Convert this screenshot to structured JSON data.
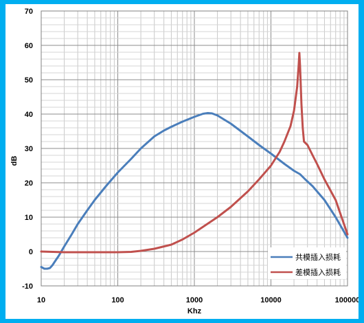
{
  "chart_data": {
    "type": "line",
    "title": "",
    "xlabel": "Khz",
    "ylabel": "dB",
    "xscale": "log",
    "xlim": [
      10,
      100000
    ],
    "ylim": [
      -10,
      70
    ],
    "x_ticks": [
      "10",
      "100",
      "1000",
      "10000",
      "100000"
    ],
    "y_ticks": [
      "-10",
      "0",
      "10",
      "20",
      "30",
      "40",
      "50",
      "60",
      "70"
    ],
    "grid": true,
    "legend_position": "bottom-right",
    "series": [
      {
        "name": "共模插入损耗",
        "color": "#4a7ebb",
        "points": [
          [
            10,
            -4.5
          ],
          [
            11,
            -5
          ],
          [
            12,
            -5
          ],
          [
            13,
            -4.8
          ],
          [
            14,
            -4
          ],
          [
            15,
            -3
          ],
          [
            17,
            -1.2
          ],
          [
            20,
            1.5
          ],
          [
            25,
            5
          ],
          [
            30,
            8
          ],
          [
            40,
            12
          ],
          [
            50,
            15
          ],
          [
            70,
            19
          ],
          [
            100,
            23
          ],
          [
            150,
            27
          ],
          [
            200,
            30
          ],
          [
            300,
            33.5
          ],
          [
            400,
            35.2
          ],
          [
            500,
            36.3
          ],
          [
            700,
            37.8
          ],
          [
            1000,
            39.2
          ],
          [
            1300,
            40.1
          ],
          [
            1500,
            40.3
          ],
          [
            1700,
            40.2
          ],
          [
            2000,
            39.6
          ],
          [
            3000,
            37.2
          ],
          [
            5000,
            33.5
          ],
          [
            7000,
            31
          ],
          [
            10000,
            28.5
          ],
          [
            15000,
            25.5
          ],
          [
            20000,
            23.5
          ],
          [
            24000,
            22.5
          ],
          [
            28000,
            21
          ],
          [
            35000,
            19
          ],
          [
            50000,
            15
          ],
          [
            70000,
            10
          ],
          [
            100000,
            4
          ]
        ]
      },
      {
        "name": "差模插入损耗",
        "color": "#c0504d",
        "points": [
          [
            10,
            0
          ],
          [
            20,
            -0.2
          ],
          [
            50,
            -0.2
          ],
          [
            100,
            -0.2
          ],
          [
            150,
            -0.1
          ],
          [
            200,
            0.2
          ],
          [
            300,
            0.8
          ],
          [
            500,
            2
          ],
          [
            700,
            3.5
          ],
          [
            1000,
            5.5
          ],
          [
            2000,
            10
          ],
          [
            3000,
            13
          ],
          [
            5000,
            17.5
          ],
          [
            7000,
            21
          ],
          [
            10000,
            25
          ],
          [
            13000,
            29
          ],
          [
            15000,
            32
          ],
          [
            18000,
            36.5
          ],
          [
            20000,
            41
          ],
          [
            22000,
            48
          ],
          [
            23000,
            54
          ],
          [
            23500,
            57.8
          ],
          [
            24000,
            54
          ],
          [
            25000,
            43
          ],
          [
            26000,
            36
          ],
          [
            27000,
            32
          ],
          [
            30000,
            31
          ],
          [
            35000,
            28
          ],
          [
            40000,
            25.5
          ],
          [
            50000,
            21
          ],
          [
            70000,
            15
          ],
          [
            100000,
            5
          ]
        ]
      }
    ]
  }
}
